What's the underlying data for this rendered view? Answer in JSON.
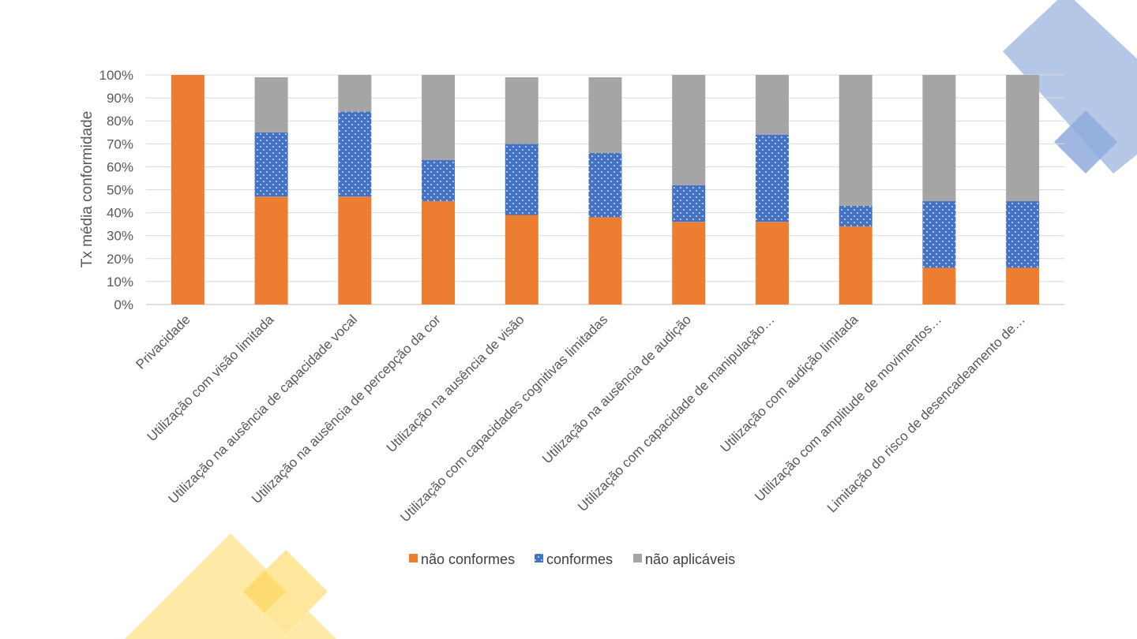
{
  "chart_data": {
    "type": "bar",
    "stacked": true,
    "ylabel": "Tx média conformidade",
    "xlabel": "",
    "ylim": [
      0,
      100
    ],
    "ytick_step": 10,
    "ytick_suffix": "%",
    "grid": true,
    "legend_position": "bottom",
    "categories": [
      "Privacidade",
      "Utilização com visão limitada",
      "Utilização na ausência de capacidade vocal",
      "Utilização na ausência de percepção da cor",
      "Utilização na ausência de visão",
      "Utilização com capacidades cognitivas limitadas",
      "Utilização na ausência de audição",
      "Utilização com capacidade de manipulação…",
      "Utilização com audição limitada",
      "Utilização com amplitude de movimentos…",
      "Limitação do risco de desencadeamento de…"
    ],
    "series": [
      {
        "name": "não conformes",
        "color": "#ED7D31",
        "pattern": "solid",
        "values": [
          100,
          47,
          47,
          45,
          39,
          38,
          36,
          36,
          34,
          16,
          16
        ]
      },
      {
        "name": "conformes",
        "color": "#4472C4",
        "pattern": "dotted",
        "values": [
          0,
          28,
          37,
          18,
          31,
          28,
          16,
          38,
          9,
          29,
          29
        ]
      },
      {
        "name": "não aplicáveis",
        "color": "#A5A5A5",
        "pattern": "solid",
        "values": [
          0,
          24,
          16,
          37,
          29,
          33,
          48,
          26,
          57,
          55,
          55
        ]
      }
    ]
  },
  "decor": {
    "blue": "#B4C7E7",
    "blue_dark": "#8FAADC",
    "yellow": "#FFE699",
    "yellow_dark": "#FFD966"
  }
}
